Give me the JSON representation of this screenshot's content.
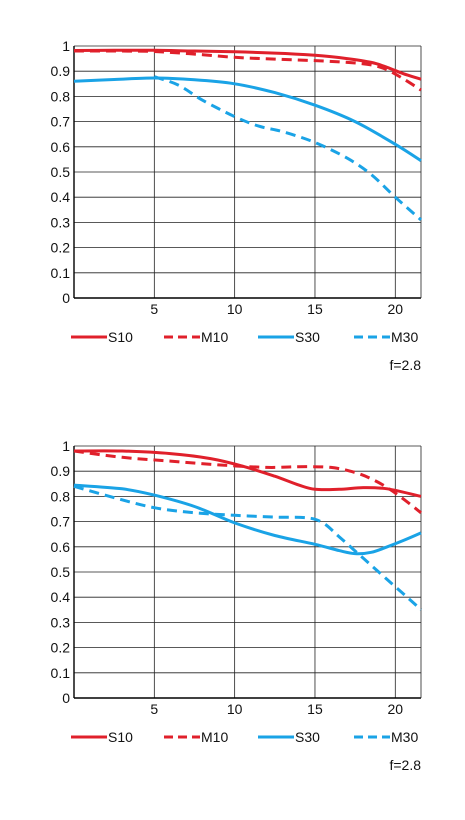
{
  "chart_data": [
    {
      "type": "line",
      "xlim": [
        0,
        21.6
      ],
      "ylim": [
        0,
        1
      ],
      "xticks": [
        "5",
        "10",
        "15",
        "20"
      ],
      "yticks": [
        "0",
        "0.1",
        "0.2",
        "0.3",
        "0.4",
        "0.5",
        "0.6",
        "0.7",
        "0.8",
        "0.9",
        "1"
      ],
      "grid": true,
      "legend_position": "bottom",
      "note": "f=2.8",
      "series": [
        {
          "name": "S10",
          "color": "#e0202b",
          "dash": "solid",
          "x": [
            0,
            2.5,
            5,
            7.5,
            10,
            12.5,
            15,
            17,
            18.5,
            19.5,
            20.5,
            21.6
          ],
          "y": [
            0.982,
            0.983,
            0.983,
            0.98,
            0.977,
            0.972,
            0.963,
            0.95,
            0.935,
            0.915,
            0.89,
            0.868
          ]
        },
        {
          "name": "M10",
          "color": "#e0202b",
          "dash": "dashed",
          "x": [
            0,
            2.5,
            5,
            7.5,
            10,
            12.5,
            15,
            17,
            18.5,
            19.5,
            20.5,
            21.6
          ],
          "y": [
            0.98,
            0.98,
            0.978,
            0.968,
            0.955,
            0.948,
            0.942,
            0.935,
            0.925,
            0.905,
            0.87,
            0.825
          ]
        },
        {
          "name": "S30",
          "color": "#1aa3e6",
          "dash": "solid",
          "x": [
            0,
            2.5,
            5,
            7.5,
            10,
            12.5,
            15,
            17.5,
            20,
            21.6
          ],
          "y": [
            0.86,
            0.867,
            0.873,
            0.866,
            0.85,
            0.815,
            0.765,
            0.7,
            0.61,
            0.545
          ]
        },
        {
          "name": "M30",
          "color": "#1aa3e6",
          "dash": "dashed",
          "x": [
            5,
            6.5,
            8,
            10,
            11.5,
            13,
            15,
            17,
            18.5,
            20,
            21.6
          ],
          "y": [
            0.878,
            0.845,
            0.785,
            0.72,
            0.682,
            0.66,
            0.617,
            0.555,
            0.49,
            0.4,
            0.31
          ]
        }
      ]
    },
    {
      "type": "line",
      "xlim": [
        0,
        21.6
      ],
      "ylim": [
        0,
        1
      ],
      "xticks": [
        "5",
        "10",
        "15",
        "20"
      ],
      "yticks": [
        "0",
        "0.1",
        "0.2",
        "0.3",
        "0.4",
        "0.5",
        "0.6",
        "0.7",
        "0.8",
        "0.9",
        "1"
      ],
      "grid": true,
      "legend_position": "bottom",
      "note": "f=2.8",
      "series": [
        {
          "name": "S10",
          "color": "#e0202b",
          "dash": "solid",
          "x": [
            0,
            3,
            6,
            8.5,
            10.5,
            12.5,
            14,
            15,
            16.5,
            18,
            19.5,
            21.6
          ],
          "y": [
            0.98,
            0.98,
            0.97,
            0.95,
            0.92,
            0.88,
            0.845,
            0.828,
            0.828,
            0.835,
            0.83,
            0.8
          ]
        },
        {
          "name": "M10",
          "color": "#e0202b",
          "dash": "dashed",
          "x": [
            0,
            3,
            6,
            9,
            12,
            14,
            16,
            17.5,
            18.5,
            19.5,
            20.5,
            21.6
          ],
          "y": [
            0.98,
            0.955,
            0.94,
            0.925,
            0.915,
            0.918,
            0.915,
            0.895,
            0.87,
            0.835,
            0.79,
            0.735
          ]
        },
        {
          "name": "S30",
          "color": "#1aa3e6",
          "dash": "solid",
          "x": [
            0,
            3,
            5,
            7.5,
            10,
            12.5,
            15,
            16.5,
            17.5,
            18.5,
            19.5,
            20.5,
            21.6
          ],
          "y": [
            0.845,
            0.83,
            0.805,
            0.76,
            0.695,
            0.645,
            0.61,
            0.585,
            0.573,
            0.578,
            0.6,
            0.625,
            0.655
          ]
        },
        {
          "name": "M30",
          "color": "#1aa3e6",
          "dash": "dashed",
          "x": [
            0,
            2.5,
            5,
            7.5,
            10,
            12.5,
            14.5,
            15.5,
            16.5,
            18,
            19.5,
            21,
            21.6
          ],
          "y": [
            0.84,
            0.795,
            0.755,
            0.735,
            0.725,
            0.718,
            0.715,
            0.695,
            0.64,
            0.555,
            0.47,
            0.385,
            0.35
          ]
        }
      ]
    }
  ]
}
